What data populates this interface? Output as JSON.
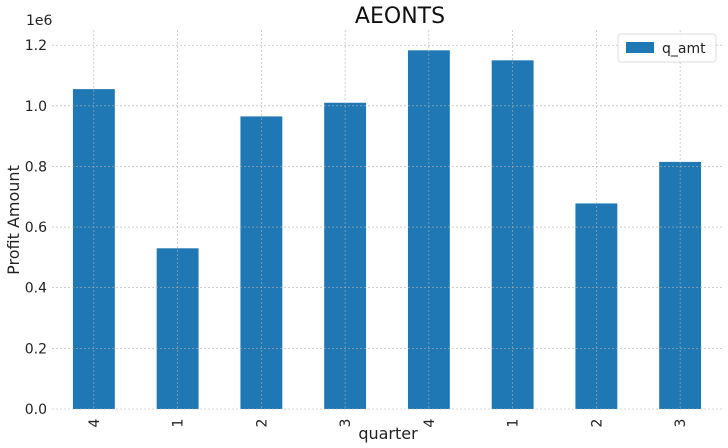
{
  "chart_data": {
    "type": "bar",
    "title": "AEONTS",
    "xlabel": "quarter",
    "ylabel": "Profit Amount",
    "y_scale_label": "1e6",
    "categories": [
      "4",
      "1",
      "2",
      "3",
      "4",
      "1",
      "2",
      "3"
    ],
    "series": [
      {
        "name": "q_amt",
        "values": [
          1055000,
          530000,
          965000,
          1010000,
          1183000,
          1150000,
          678000,
          815000
        ]
      }
    ],
    "ylim": [
      0,
      1250000
    ],
    "yticks": [
      0,
      200000,
      400000,
      600000,
      800000,
      1000000,
      1200000
    ],
    "ytick_labels": [
      "0.0",
      "0.2",
      "0.4",
      "0.6",
      "0.8",
      "1.0",
      "1.2"
    ],
    "grid": true,
    "legend_position": "top-right",
    "colors": {
      "bar": "#1f77b4"
    }
  }
}
